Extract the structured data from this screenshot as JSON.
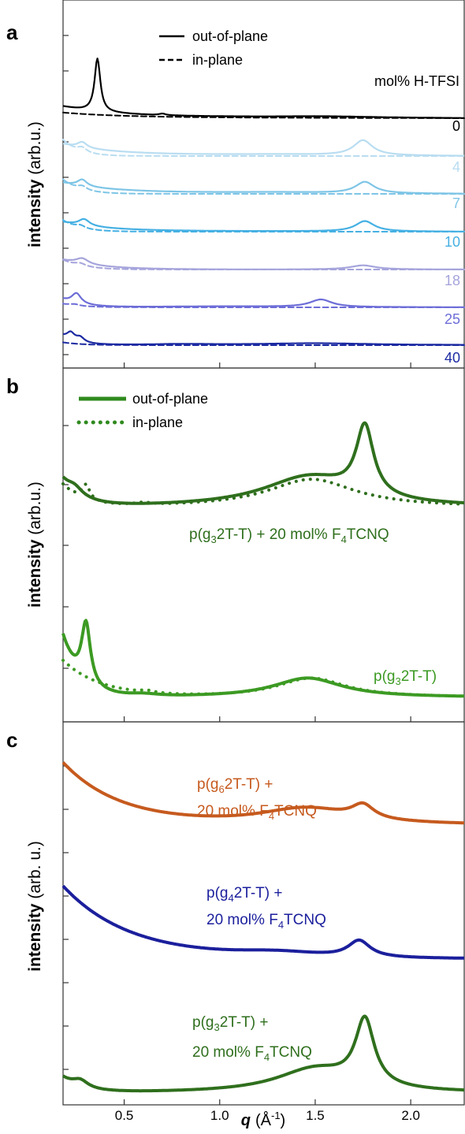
{
  "figure": {
    "x_axis": {
      "symbol": "q",
      "unit_open": "(Å",
      "unit_exp": "-1",
      "unit_close": ")",
      "range": [
        0.18,
        2.28
      ],
      "ticks": [
        0.5,
        1.0,
        1.5,
        2.0
      ],
      "tick_labels": [
        "0.5",
        "1.0",
        "1.5",
        "2.0"
      ]
    }
  },
  "chart_data": [
    {
      "type": "line",
      "panel": "a",
      "ylabel_bold": "intensity",
      "ylabel_rest": " (arb.u.)",
      "legend": {
        "solid": "out-of-plane",
        "dashed": "in-plane",
        "title": "mol% H-TFSI"
      },
      "xlim": [
        0.18,
        2.28
      ],
      "y_scale": "offset stack (arbitrary)",
      "series": [
        {
          "name": "0",
          "color": "#000000",
          "offset": 6.0,
          "oop": {
            "base": 0.5,
            "decay": 0.25,
            "tail": 0.12,
            "peaks": [
              [
                0.36,
                2.8,
                0.018
              ],
              [
                0.7,
                0.08,
                0.02
              ],
              [
                1.55,
                0.06,
                0.3
              ]
            ]
          },
          "ip": {
            "base": 0.25,
            "decay": 0.3,
            "tail": 0.05,
            "peaks": []
          }
        },
        {
          "name": "4",
          "color": "#b9ddf1",
          "offset": 5.0,
          "oop": {
            "base": 0.55,
            "decay": 0.25,
            "tail": 0.08,
            "peaks": [
              [
                0.28,
                0.3,
                0.03
              ],
              [
                1.75,
                0.8,
                0.06
              ],
              [
                1.3,
                0.05,
                0.35
              ]
            ]
          },
          "ip": {
            "base": 0.85,
            "decay": 0.08,
            "tail": 0.0,
            "peaks": [
              [
                0.28,
                0.25,
                0.03
              ]
            ]
          }
        },
        {
          "name": "7",
          "color": "#7ec5e6",
          "offset": 4.0,
          "oop": {
            "base": 0.5,
            "decay": 0.25,
            "tail": 0.08,
            "peaks": [
              [
                0.28,
                0.35,
                0.03
              ],
              [
                1.76,
                0.6,
                0.06
              ],
              [
                1.3,
                0.05,
                0.35
              ]
            ]
          },
          "ip": {
            "base": 0.75,
            "decay": 0.09,
            "tail": 0.0,
            "peaks": [
              [
                0.28,
                0.2,
                0.03
              ]
            ]
          }
        },
        {
          "name": "10",
          "color": "#45b0e3",
          "offset": 3.0,
          "oop": {
            "base": 0.45,
            "decay": 0.22,
            "tail": 0.05,
            "peaks": [
              [
                0.29,
                0.35,
                0.035
              ],
              [
                1.76,
                0.55,
                0.06
              ]
            ]
          },
          "ip": {
            "base": 0.6,
            "decay": 0.09,
            "tail": 0.0,
            "peaks": [
              [
                0.27,
                0.15,
                0.03
              ]
            ]
          }
        },
        {
          "name": "18",
          "color": "#a5a4dc",
          "offset": 2.0,
          "oop": {
            "base": 0.5,
            "decay": 0.2,
            "tail": 0.0,
            "peaks": [
              [
                0.28,
                0.3,
                0.04
              ],
              [
                1.75,
                0.22,
                0.08
              ]
            ]
          },
          "ip": {
            "base": 0.5,
            "decay": 0.1,
            "tail": 0.0,
            "peaks": [
              [
                0.27,
                0.15,
                0.035
              ]
            ]
          }
        },
        {
          "name": "25",
          "color": "#6d6dd8",
          "offset": 1.0,
          "oop": {
            "base": 0.4,
            "decay": 0.1,
            "tail": 0.0,
            "peaks": [
              [
                0.25,
                0.55,
                0.03
              ],
              [
                1.53,
                0.4,
                0.07
              ],
              [
                1.0,
                0.05,
                0.4
              ]
            ]
          },
          "ip": {
            "base": 0.18,
            "decay": 0.1,
            "tail": 0.0,
            "peaks": [
              [
                0.24,
                0.08,
                0.03
              ]
            ]
          }
        },
        {
          "name": "40",
          "color": "#1c2aa1",
          "offset": 0.0,
          "oop": {
            "base": 0.45,
            "decay": 0.08,
            "tail": 0.0,
            "peaks": [
              [
                0.22,
                0.4,
                0.025
              ],
              [
                0.27,
                0.25,
                0.025
              ],
              [
                1.5,
                0.1,
                0.35
              ],
              [
                0.8,
                0.05,
                0.2
              ]
            ]
          },
          "ip": {
            "base": 0.15,
            "decay": 0.1,
            "tail": 0.0,
            "peaks": []
          }
        }
      ]
    },
    {
      "type": "line",
      "panel": "b",
      "ylabel_bold": "intensity",
      "ylabel_rest": " (arb.u.)",
      "legend": {
        "solid": "out-of-plane",
        "dotted": "in-plane"
      },
      "xlim": [
        0.18,
        2.28
      ],
      "y_scale": "offset stack (arbitrary)",
      "series": [
        {
          "name": "p(g3 2T-T) + 20 mol% F4TCNQ",
          "label_parts": [
            "p(g",
            "3",
            "2T-T) + 20 mol% F",
            "4",
            "TCNQ"
          ],
          "color": "#2f6f1d",
          "offset": 1.7,
          "oop": {
            "base": 1.2,
            "decay": 0.1,
            "tail": 0.0,
            "peaks": [
              [
                0.24,
                0.35,
                0.05
              ],
              [
                1.76,
                3.2,
                0.055
              ],
              [
                1.47,
                1.4,
                0.3
              ]
            ]
          },
          "ip": {
            "base": 1.0,
            "decay": 0.1,
            "tail": 0.0,
            "peaks": [
              [
                0.3,
                0.7,
                0.025
              ],
              [
                0.6,
                0.1,
                0.05
              ],
              [
                1.48,
                1.3,
                0.28
              ]
            ]
          }
        },
        {
          "name": "p(g3 2T-T)",
          "label_parts": [
            "p(g",
            "3",
            "2T-T)"
          ],
          "color": "#3c9a23",
          "offset": 0.0,
          "oop": {
            "base": 2.8,
            "decay": 0.09,
            "tail": 0.0,
            "peaks": [
              [
                0.3,
                2.8,
                0.028
              ],
              [
                1.46,
                0.9,
                0.22
              ],
              [
                0.6,
                0.1,
                0.1
              ]
            ]
          },
          "ip": {
            "base": 1.7,
            "decay": 0.2,
            "tail": 0.0,
            "peaks": [
              [
                1.48,
                0.9,
                0.22
              ],
              [
                0.62,
                0.1,
                0.05
              ]
            ]
          }
        }
      ]
    },
    {
      "type": "line",
      "panel": "c",
      "ylabel_bold": "intensity",
      "ylabel_rest": " (arb. u.)",
      "xlim": [
        0.18,
        2.28
      ],
      "y_scale": "offset stack (arbitrary)",
      "series": [
        {
          "name": "p(g6 2T-T) + 20 mol% F4TCNQ",
          "line1_parts": [
            "p(g",
            "6",
            "2T-T) +"
          ],
          "line2_parts": [
            "20 mol% F",
            "4",
            "TCNQ"
          ],
          "color": "#c65a1e",
          "offset": 4.0,
          "oop": {
            "base": 3.4,
            "decay": 0.3,
            "tail": 0.0,
            "peaks": [
              [
                1.75,
                0.75,
                0.07
              ],
              [
                1.45,
                0.9,
                0.3
              ]
            ]
          }
        },
        {
          "name": "p(g4 2T-T) + 20 mol% F4TCNQ",
          "line1_parts": [
            "p(g",
            "4",
            "2T-T) +"
          ],
          "line2_parts": [
            "20 mol% F",
            "4",
            "TCNQ"
          ],
          "color": "#1b1f9c",
          "offset": 2.0,
          "oop": {
            "base": 4.0,
            "decay": 0.35,
            "tail": 0.0,
            "peaks": [
              [
                1.73,
                0.9,
                0.07
              ],
              [
                1.3,
                0.3,
                0.3
              ]
            ]
          }
        },
        {
          "name": "p(g3 2T-T) + 20 mol% F4TCNQ",
          "line1_parts": [
            "p(g",
            "3",
            "2T-T) +"
          ],
          "line2_parts": [
            "20 mol% F",
            "4",
            "TCNQ"
          ],
          "color": "#2f6f1d",
          "offset": 0.0,
          "oop": {
            "base": 0.8,
            "decay": 0.1,
            "tail": 0.0,
            "peaks": [
              [
                0.27,
                0.4,
                0.05
              ],
              [
                1.76,
                3.6,
                0.06
              ],
              [
                1.5,
                1.3,
                0.25
              ]
            ]
          }
        }
      ]
    }
  ]
}
